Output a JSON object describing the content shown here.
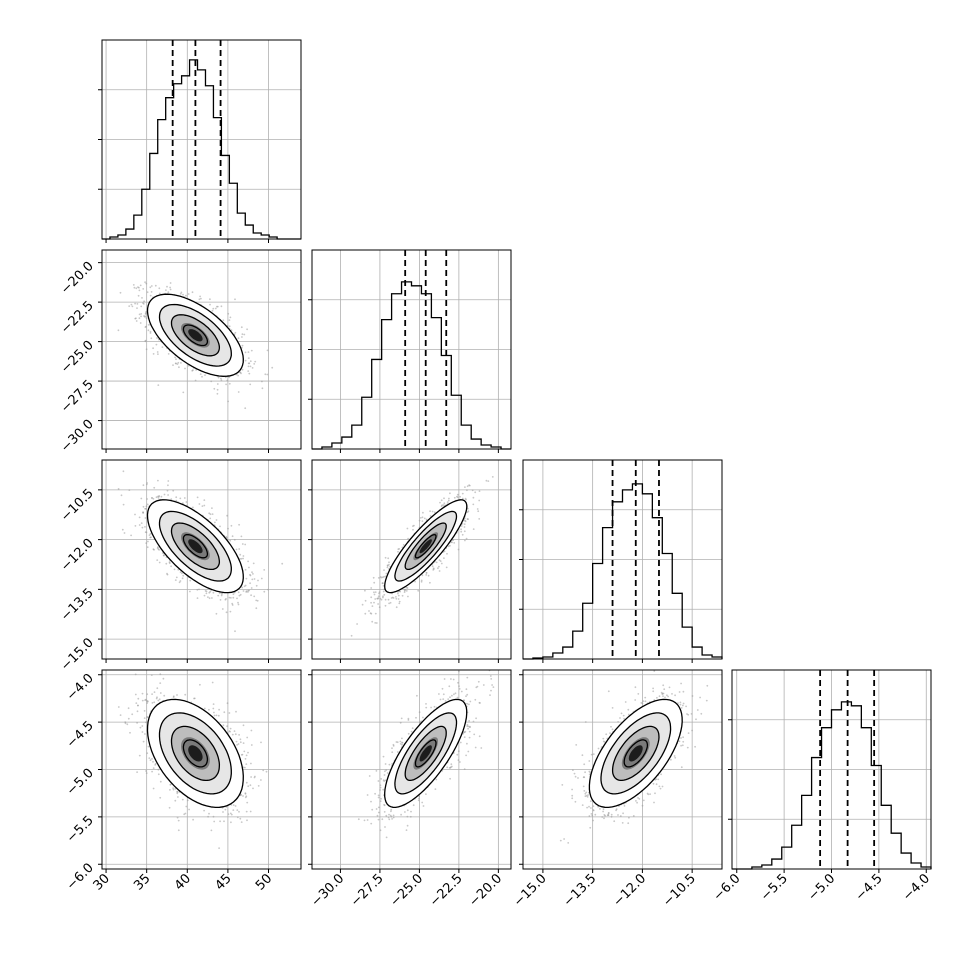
{
  "chart_data": {
    "type": "corner",
    "colors": {
      "line": "#000000",
      "grid": "#b0b0b0",
      "scatter": "#9a9a9a",
      "background": "#ffffff"
    },
    "grid": true,
    "parameters": [
      {
        "range": [
          29.5,
          54.0
        ],
        "ticks": [
          30,
          35,
          40,
          45,
          50
        ],
        "tick_labels": [
          "30",
          "35",
          "40",
          "45",
          "50"
        ],
        "quantiles": [
          38.2,
          41.0,
          44.1
        ],
        "hist": [
          0,
          0.01,
          0.02,
          0.05,
          0.12,
          0.25,
          0.43,
          0.6,
          0.71,
          0.78,
          0.82,
          0.9,
          0.85,
          0.77,
          0.61,
          0.42,
          0.28,
          0.13,
          0.07,
          0.03,
          0.02,
          0.01,
          0,
          0,
          0
        ]
      },
      {
        "range": [
          -31.8,
          -19.2
        ],
        "ticks": [
          -30.0,
          -27.5,
          -25.0,
          -22.5,
          -20.0
        ],
        "tick_labels": [
          "−30.0",
          "−27.5",
          "−25.0",
          "−22.5",
          "−20.0"
        ],
        "quantiles": [
          -25.9,
          -24.6,
          -23.3
        ],
        "hist": [
          0,
          0.01,
          0.03,
          0.06,
          0.12,
          0.26,
          0.45,
          0.65,
          0.78,
          0.84,
          0.82,
          0.78,
          0.66,
          0.47,
          0.27,
          0.12,
          0.05,
          0.02,
          0.01,
          0
        ]
      },
      {
        "range": [
          -15.6,
          -9.6
        ],
        "ticks": [
          -15.0,
          -13.5,
          -12.0,
          -10.5
        ],
        "tick_labels": [
          "−15.0",
          "−13.5",
          "−12.0",
          "−10.5"
        ],
        "quantiles": [
          -12.9,
          -12.2,
          -11.5
        ],
        "hist": [
          0,
          0.005,
          0.01,
          0.03,
          0.06,
          0.14,
          0.28,
          0.48,
          0.66,
          0.79,
          0.85,
          0.88,
          0.83,
          0.71,
          0.53,
          0.33,
          0.16,
          0.06,
          0.02,
          0.01
        ]
      },
      {
        "range": [
          -6.05,
          -3.95
        ],
        "ticks": [
          -6.0,
          -5.5,
          -5.0,
          -4.5,
          -4.0
        ],
        "tick_labels": [
          "−6.0",
          "−5.5",
          "−5.0",
          "−4.5",
          "−4.0"
        ],
        "quantiles": [
          -5.12,
          -4.83,
          -4.55
        ],
        "hist": [
          0,
          0,
          0.01,
          0.02,
          0.05,
          0.11,
          0.22,
          0.37,
          0.56,
          0.71,
          0.8,
          0.84,
          0.82,
          0.71,
          0.52,
          0.32,
          0.18,
          0.08,
          0.03,
          0.01
        ]
      }
    ],
    "correlations": [
      [
        1,
        -0.6,
        -0.66,
        -0.45
      ],
      [
        -0.6,
        1,
        0.86,
        0.76
      ],
      [
        -0.66,
        0.86,
        1,
        0.62
      ],
      [
        -0.45,
        0.76,
        0.62,
        1
      ]
    ],
    "contour_levels_sigma": [
      0.5,
      1.0,
      1.5,
      2.0
    ]
  }
}
